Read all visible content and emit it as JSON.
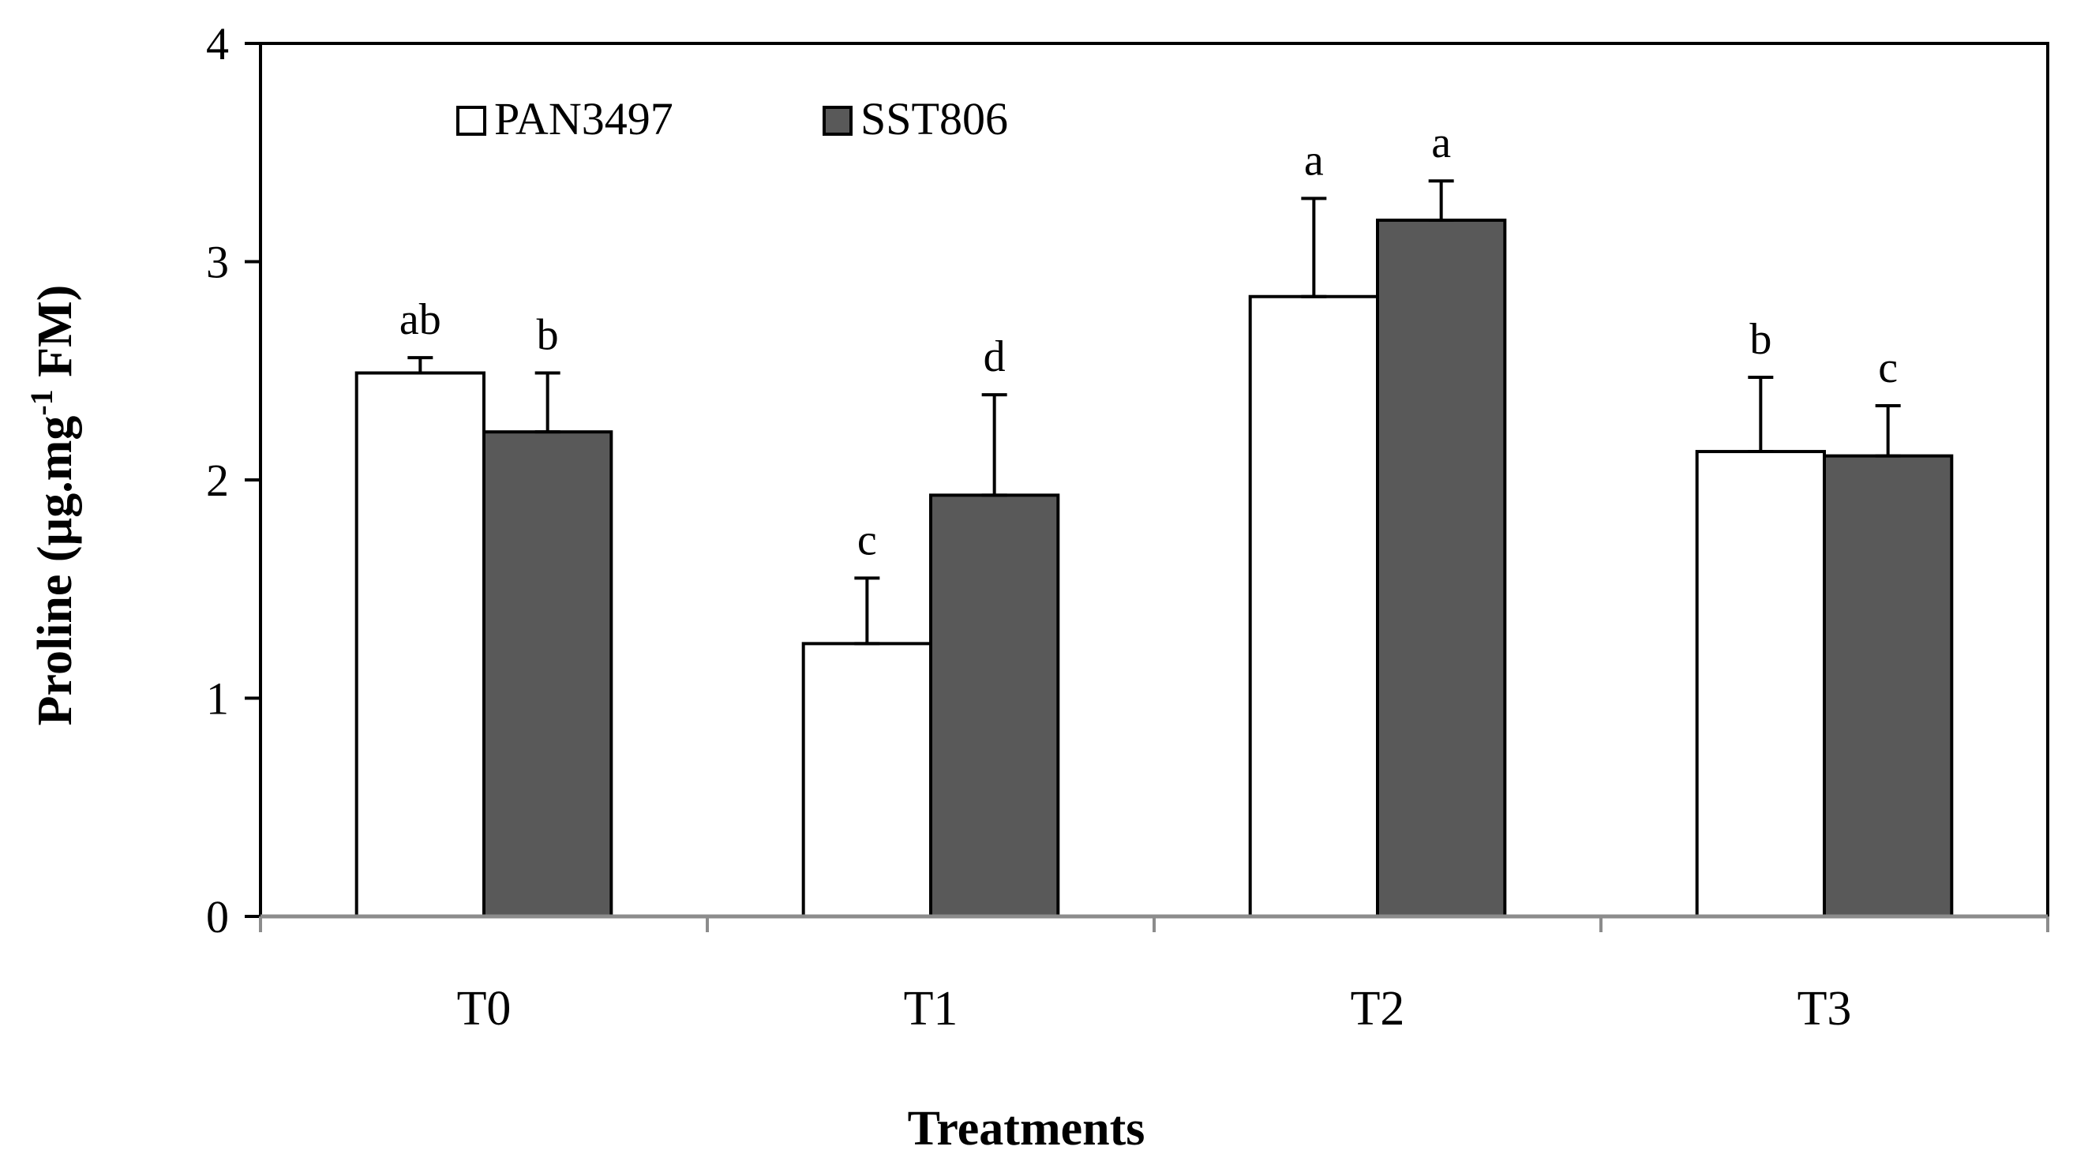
{
  "chart_data": {
    "type": "bar",
    "title": "",
    "xlabel": "Treatments",
    "ylabel": "Proline (µg.mg-1 FM)",
    "ylabel_parts": {
      "main": "Proline (µg.mg",
      "superscript": "-1",
      "tail": " FM)"
    },
    "ylim": [
      0,
      4
    ],
    "yticks": [
      0,
      1,
      2,
      3,
      4
    ],
    "grid": false,
    "legend_position": "top-left",
    "categories": [
      "T0",
      "T1",
      "T2",
      "T3"
    ],
    "series": [
      {
        "name": "PAN3497",
        "color": "#ffffff",
        "values": [
          2.49,
          1.25,
          2.84,
          2.13
        ],
        "errors": [
          0.07,
          0.3,
          0.45,
          0.34
        ],
        "letters": [
          "ab",
          "c",
          "a",
          "b"
        ]
      },
      {
        "name": "SST806",
        "color": "#595959",
        "values": [
          2.22,
          1.93,
          3.19,
          2.11
        ],
        "errors": [
          0.27,
          0.46,
          0.18,
          0.23
        ],
        "letters": [
          "b",
          "d",
          "a",
          "c"
        ]
      }
    ]
  }
}
